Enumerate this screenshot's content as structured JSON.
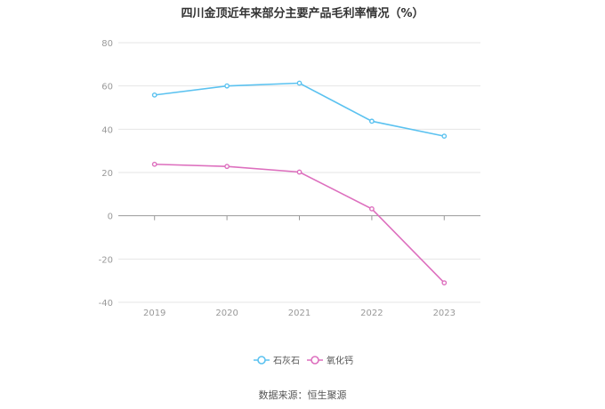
{
  "chart_data": {
    "type": "line",
    "title": "四川金顶近年来部分主要产品毛利率情况（%）",
    "categories": [
      "2019",
      "2020",
      "2021",
      "2022",
      "2023"
    ],
    "series": [
      {
        "name": "石灰石",
        "values": [
          55.8,
          60.0,
          61.3,
          43.7,
          36.8
        ],
        "color": "#5bc2f0"
      },
      {
        "name": "氧化钙",
        "values": [
          23.8,
          22.8,
          20.2,
          3.2,
          -31.0
        ],
        "color": "#dd6fbe"
      }
    ],
    "yticks": [
      80,
      60,
      40,
      20,
      0,
      -20,
      -40
    ],
    "ylim": [
      -40,
      80
    ],
    "grid": true,
    "legend": "bottom-center",
    "source": "数据来源：恒生聚源"
  }
}
